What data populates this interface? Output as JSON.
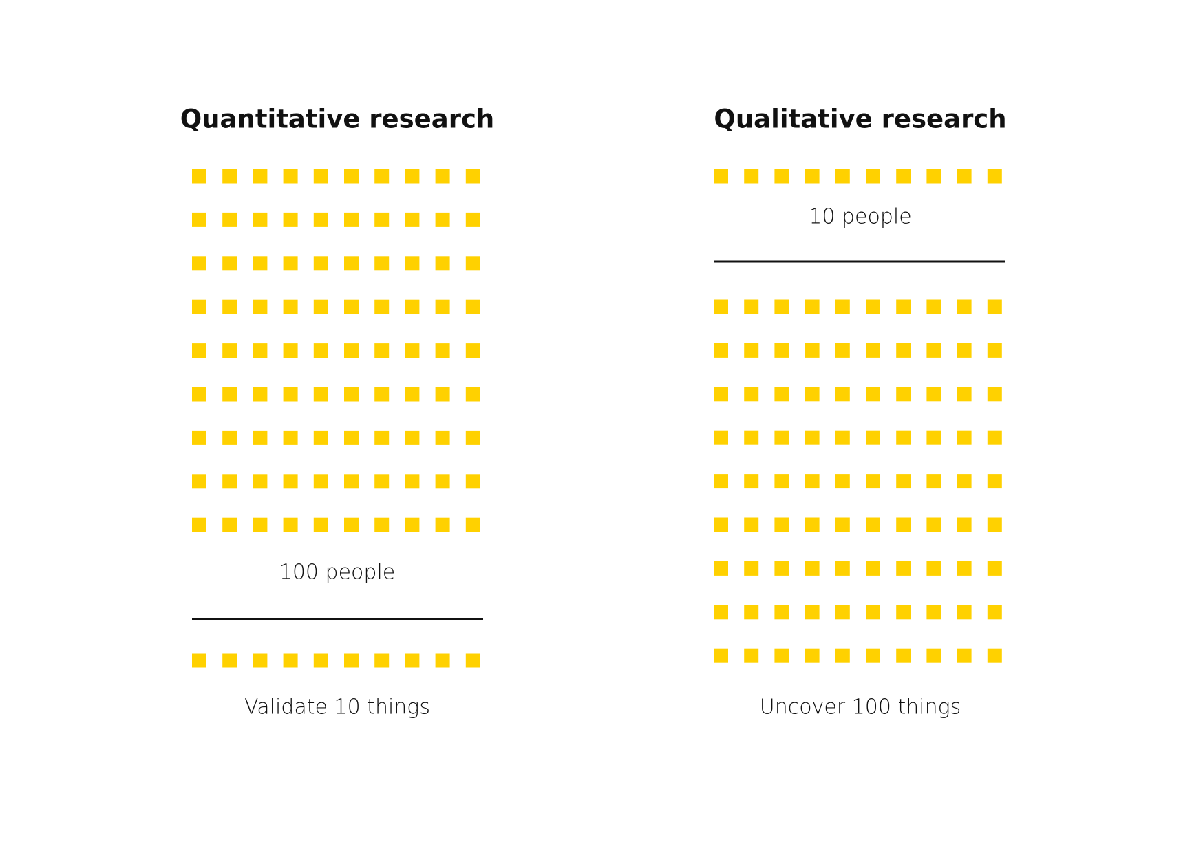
{
  "panels": [
    {
      "title": "Quantitative research",
      "people_label": "100 people",
      "result_label": "Validate 10 things"
    },
    {
      "title": "Qualitative research",
      "people_label": "10 people",
      "result_label": "Uncover 100 things"
    }
  ]
}
